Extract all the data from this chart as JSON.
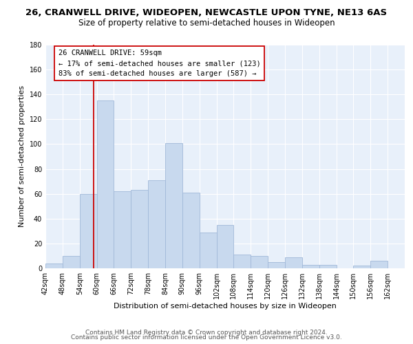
{
  "title": "26, CRANWELL DRIVE, WIDEOPEN, NEWCASTLE UPON TYNE, NE13 6AS",
  "subtitle": "Size of property relative to semi-detached houses in Wideopen",
  "xlabel": "Distribution of semi-detached houses by size in Wideopen",
  "ylabel": "Number of semi-detached properties",
  "footer_line1": "Contains HM Land Registry data © Crown copyright and database right 2024.",
  "footer_line2": "Contains public sector information licensed under the Open Government Licence v3.0.",
  "bin_labels": [
    "42sqm",
    "48sqm",
    "54sqm",
    "60sqm",
    "66sqm",
    "72sqm",
    "78sqm",
    "84sqm",
    "90sqm",
    "96sqm",
    "102sqm",
    "108sqm",
    "114sqm",
    "120sqm",
    "126sqm",
    "132sqm",
    "138sqm",
    "144sqm",
    "150sqm",
    "156sqm",
    "162sqm"
  ],
  "bin_edges": [
    42,
    48,
    54,
    60,
    66,
    72,
    78,
    84,
    90,
    96,
    102,
    108,
    114,
    120,
    126,
    132,
    138,
    144,
    150,
    156,
    162
  ],
  "bar_heights": [
    4,
    10,
    60,
    135,
    62,
    63,
    71,
    101,
    61,
    29,
    35,
    11,
    10,
    5,
    9,
    3,
    3,
    0,
    2,
    6,
    0
  ],
  "bar_color": "#c8d9ee",
  "bar_edge_color": "#a0b8d8",
  "property_line_x": 59,
  "property_line_color": "#cc0000",
  "annotation_title": "26 CRANWELL DRIVE: 59sqm",
  "annotation_line1": "← 17% of semi-detached houses are smaller (123)",
  "annotation_line2": "83% of semi-detached houses are larger (587) →",
  "annotation_box_color": "#ffffff",
  "annotation_box_edge": "#cc0000",
  "ylim": [
    0,
    180
  ],
  "yticks": [
    0,
    20,
    40,
    60,
    80,
    100,
    120,
    140,
    160,
    180
  ],
  "title_fontsize": 9.5,
  "subtitle_fontsize": 8.5,
  "axis_label_fontsize": 8,
  "tick_fontsize": 7,
  "annotation_fontsize": 7.5,
  "footer_fontsize": 6.5
}
